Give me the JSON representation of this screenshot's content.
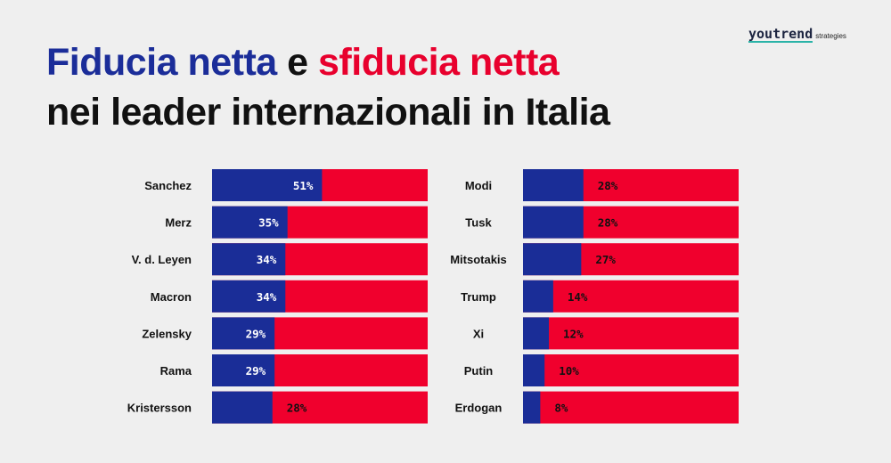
{
  "logo": {
    "word": "youtrend",
    "sub": "strategies"
  },
  "title": {
    "part1": "Fiducia netta",
    "conj": " e ",
    "part2": "sfiducia netta",
    "line2": "nei leader internazionali in Italia"
  },
  "colors": {
    "trust": "#1a2d97",
    "distrust": "#f0002d",
    "background": "#efefef"
  },
  "chart_data": [
    {
      "type": "bar",
      "orientation": "horizontal",
      "stacked": true,
      "normalized": true,
      "categories": [
        "Sanchez",
        "Merz",
        "V. d. Leyen",
        "Macron",
        "Zelensky",
        "Rama",
        "Kristersson"
      ],
      "series": [
        {
          "name": "Fiducia netta",
          "values": [
            51,
            35,
            34,
            34,
            29,
            29,
            28
          ]
        },
        {
          "name": "Sfiducia netta",
          "values": [
            49,
            65,
            66,
            66,
            71,
            71,
            72
          ]
        }
      ],
      "data_labels": [
        "51%",
        "35%",
        "34%",
        "34%",
        "29%",
        "29%",
        "28%"
      ],
      "xlim": [
        0,
        100
      ]
    },
    {
      "type": "bar",
      "orientation": "horizontal",
      "stacked": true,
      "normalized": true,
      "categories": [
        "Modi",
        "Tusk",
        "Mitsotakis",
        "Trump",
        "Xi",
        "Putin",
        "Erdogan"
      ],
      "series": [
        {
          "name": "Fiducia netta",
          "values": [
            28,
            28,
            27,
            14,
            12,
            10,
            8
          ]
        },
        {
          "name": "Sfiducia netta",
          "values": [
            72,
            72,
            73,
            86,
            88,
            90,
            92
          ]
        }
      ],
      "data_labels": [
        "28%",
        "28%",
        "27%",
        "14%",
        "12%",
        "10%",
        "8%"
      ],
      "xlim": [
        0,
        100
      ]
    }
  ]
}
